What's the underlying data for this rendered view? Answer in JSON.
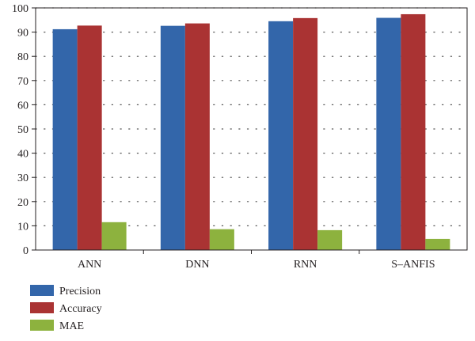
{
  "chart_data": {
    "type": "bar",
    "title": "",
    "xlabel": "",
    "ylabel": "",
    "categories": [
      "ANN",
      "DNN",
      "RNN",
      "S–ANFIS"
    ],
    "ylim": [
      0,
      100
    ],
    "yticks": [
      0,
      10,
      20,
      30,
      40,
      50,
      60,
      70,
      80,
      90,
      100
    ],
    "grid": true,
    "legend_position": "bottom-left",
    "series": [
      {
        "name": "Precision",
        "color": "#3366aa",
        "values": [
          91.2,
          92.6,
          94.5,
          95.9
        ]
      },
      {
        "name": "Accuracy",
        "color": "#aa3333",
        "values": [
          92.7,
          93.6,
          95.8,
          97.4
        ]
      },
      {
        "name": "MAE",
        "color": "#8db23e",
        "values": [
          11.5,
          8.6,
          8.2,
          4.6
        ]
      }
    ]
  }
}
